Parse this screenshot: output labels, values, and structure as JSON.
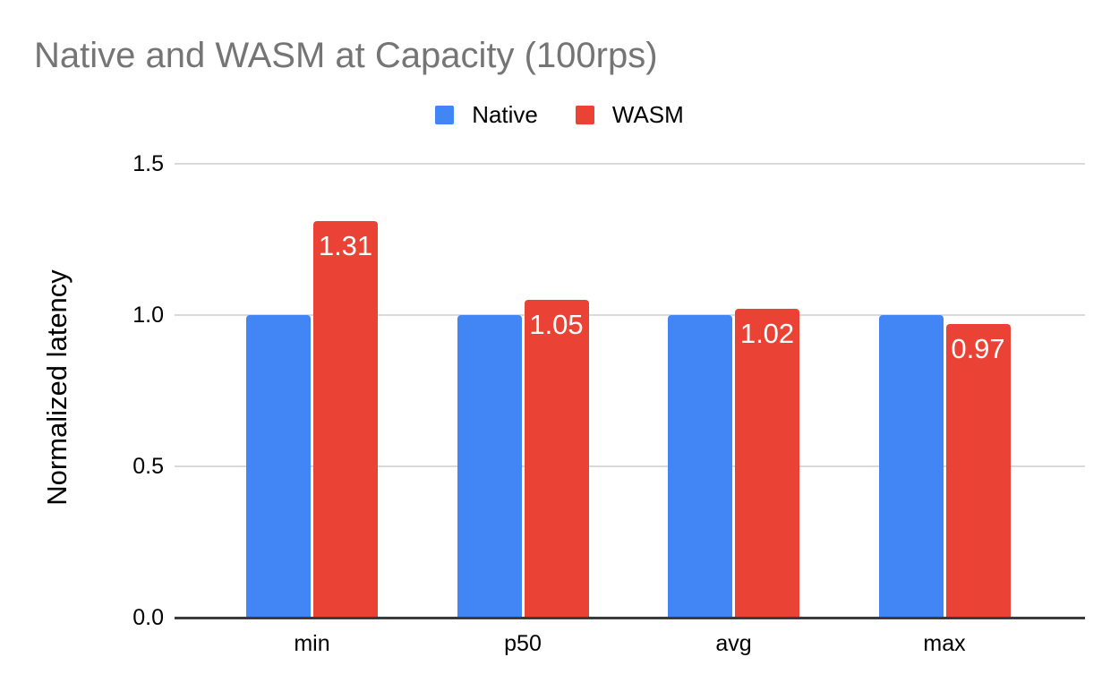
{
  "chart_data": {
    "type": "bar",
    "title": "Native and WASM at Capacity (100rps)",
    "title_color": "#757575",
    "categories": [
      "min",
      "p50",
      "avg",
      "max"
    ],
    "series": [
      {
        "name": "Native",
        "color": "#4285F4",
        "values": [
          1.0,
          1.0,
          1.0,
          1.0
        ],
        "show_labels": false,
        "labels": [
          "",
          "",
          "",
          ""
        ]
      },
      {
        "name": "WASM",
        "color": "#EA4335",
        "values": [
          1.31,
          1.05,
          1.02,
          0.97
        ],
        "show_labels": true,
        "labels": [
          "1.31",
          "1.05",
          "1.02",
          "0.97"
        ]
      }
    ],
    "xlabel": "",
    "ylabel": "Normalized latency",
    "ylim": [
      0,
      1.5
    ],
    "yticks": [
      "0.0",
      "0.5",
      "1.0",
      "1.5"
    ],
    "grid": true,
    "legend_position": "top",
    "data_label_color": "#ffffff",
    "axis_line_color": "#3c3c3c",
    "gridline_color": "#d9d9d9",
    "tick_label_color": "#000000",
    "background_color": "#ffffff"
  }
}
